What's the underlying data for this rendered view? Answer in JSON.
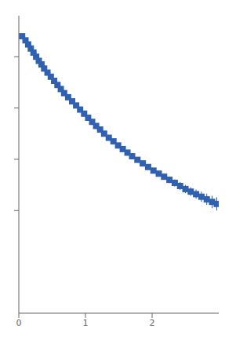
{
  "chart_data": {
    "type": "scatter",
    "x": [
      0.05,
      0.1,
      0.14,
      0.18,
      0.22,
      0.26,
      0.3,
      0.34,
      0.38,
      0.43,
      0.48,
      0.53,
      0.58,
      0.63,
      0.68,
      0.74,
      0.8,
      0.86,
      0.92,
      0.98,
      1.04,
      1.1,
      1.16,
      1.22,
      1.28,
      1.35,
      1.42,
      1.49,
      1.56,
      1.63,
      1.7,
      1.78,
      1.86,
      1.94,
      2.02,
      2.1,
      2.18,
      2.26,
      2.34,
      2.42,
      2.5,
      2.58,
      2.66,
      2.74,
      2.82,
      2.9,
      2.97
    ],
    "values": [
      3.9,
      3.82,
      3.74,
      3.66,
      3.58,
      3.5,
      3.42,
      3.35,
      3.27,
      3.19,
      3.11,
      3.03,
      2.95,
      2.87,
      2.79,
      2.71,
      2.63,
      2.55,
      2.47,
      2.39,
      2.31,
      2.23,
      2.15,
      2.08,
      2.0,
      1.92,
      1.85,
      1.77,
      1.7,
      1.63,
      1.56,
      1.49,
      1.42,
      1.35,
      1.28,
      1.22,
      1.16,
      1.1,
      1.04,
      0.98,
      0.92,
      0.87,
      0.82,
      0.77,
      0.72,
      0.67,
      0.63
    ],
    "errors": [
      0.015,
      0.015,
      0.015,
      0.015,
      0.015,
      0.015,
      0.015,
      0.015,
      0.015,
      0.015,
      0.015,
      0.015,
      0.015,
      0.015,
      0.015,
      0.015,
      0.015,
      0.015,
      0.02,
      0.02,
      0.02,
      0.02,
      0.02,
      0.02,
      0.025,
      0.025,
      0.03,
      0.03,
      0.03,
      0.035,
      0.035,
      0.04,
      0.04,
      0.045,
      0.05,
      0.055,
      0.06,
      0.065,
      0.07,
      0.075,
      0.08,
      0.085,
      0.09,
      0.1,
      0.11,
      0.12,
      0.13
    ],
    "xlim": [
      0,
      3.0
    ],
    "ylim": [
      -1.5,
      4.3
    ],
    "xticks": [
      0,
      1,
      2
    ],
    "yticks": [
      3.5,
      2.5,
      1.5,
      0.5
    ],
    "color": "#3060b0",
    "marker": "square",
    "grid": false,
    "tick_labels": "x"
  }
}
